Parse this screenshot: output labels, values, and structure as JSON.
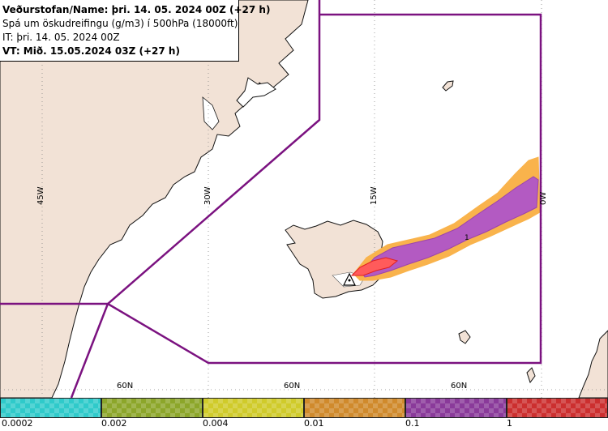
{
  "header": {
    "line1": "Veðurstofan/Name: þri. 14. 05. 2024 00Z (+27 h)",
    "line2": "Spá um öskudreifingu (g/m3) í 500hPa (18000ft)",
    "line3": "IT: þri. 14. 05. 2024 00Z",
    "line4": "VT: Mið. 15.05.2024 03Z (+27 h)"
  },
  "grid": {
    "lon_45": "45W",
    "lon_30": "30W",
    "lon_15": "15W",
    "lon_0": "0W",
    "lat_a": "60N",
    "lat_b": "60N",
    "lat_c": "60N"
  },
  "plume_label": "1",
  "legend": {
    "labels": [
      "0.0002",
      "0.002",
      "0.004",
      "0.01",
      "0.1",
      "1"
    ],
    "colors": [
      "#2fcaca",
      "#8ca62a",
      "#d0cb2a",
      "#d08a2c",
      "#8a3a9a",
      "#cc2f2f"
    ]
  },
  "colors": {
    "land": "#f2e2d6",
    "ocean": "#ffffff",
    "boundary": "#7b1280",
    "ash_low": "#f9b34c",
    "ash_mid": "#b35ac2",
    "ash_high": "#ff5b5b"
  }
}
